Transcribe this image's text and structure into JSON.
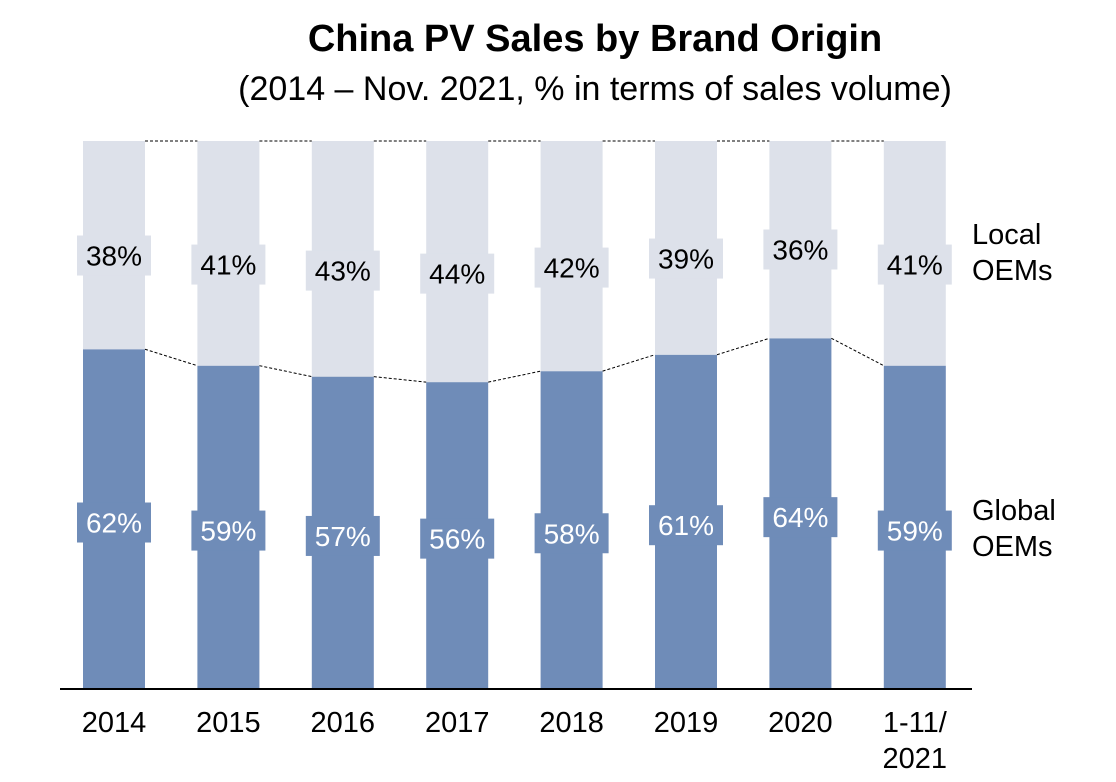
{
  "chart_data": {
    "type": "bar",
    "stacked": true,
    "percent": true,
    "title": "China PV Sales by Brand Origin",
    "subtitle": "(2014 – Nov. 2021, % in terms of sales volume)",
    "categories": [
      "2014",
      "2015",
      "2016",
      "2017",
      "2018",
      "2019",
      "2020",
      "1-11/\n2021"
    ],
    "series": [
      {
        "name": "Global OEMs",
        "values": [
          62,
          59,
          57,
          56,
          58,
          61,
          64,
          59
        ],
        "color": "#6f8cb8",
        "label_color": "#ffffff"
      },
      {
        "name": "Local OEMs",
        "values": [
          38,
          41,
          43,
          44,
          42,
          39,
          36,
          41
        ],
        "color": "#dde1ea",
        "label_color": "#000000"
      }
    ],
    "ylim": [
      0,
      100
    ],
    "data_label_format": "{v}%",
    "grid": false,
    "legend": "right, labels beside top bar",
    "connector_lines": "dashed"
  },
  "series_labels": {
    "local": "Local\nOEMs",
    "global": "Global\nOEMs"
  },
  "colors": {
    "global": "#6f8cb8",
    "local": "#dde1ea",
    "axis": "#000000"
  }
}
